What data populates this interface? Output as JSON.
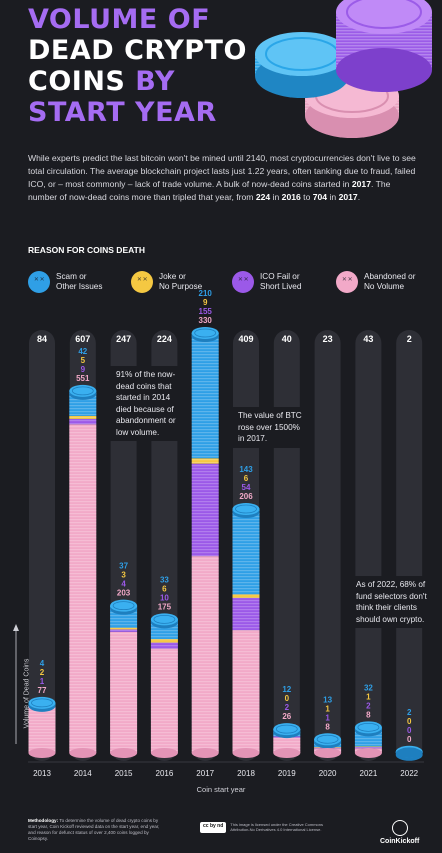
{
  "title": {
    "l1": "VOLUME OF",
    "l2": "DEAD CRYPTO",
    "l3a": "COINS",
    "l3b": " BY",
    "l4": "START YEAR"
  },
  "intro": {
    "p1": "While experts predict the last bitcoin won't be mined until 2140, most cryptocurrencies don't live to see total circulation. The average blockchain project lasts just 1.22 years, often tanking due to fraud, failed ICO, or – most commonly – lack of trade volume. A bulk of now-dead coins started in ",
    "b1": "2017",
    "p2": ". The number of now-dead coins more than tripled that year, from ",
    "b2": "224",
    "p3": " in ",
    "b3": "2016",
    "p4": " to ",
    "b4": "704",
    "p5": " in ",
    "b5": "2017",
    "p6": "."
  },
  "legend": {
    "heading": "REASON FOR COINS DEATH",
    "items": [
      {
        "label": "Scam or\nOther Issues",
        "color": "#2f9fe6"
      },
      {
        "label": "Joke or\nNo Purpose",
        "color": "#f5c842"
      },
      {
        "label": "ICO Fail or\nShort Lived",
        "color": "#9b59e8"
      },
      {
        "label": "Abandoned or\nNo Volume",
        "color": "#f2a9c8"
      }
    ]
  },
  "notes": {
    "n2014": "91% of the now-dead coins that started in 2014 died because of abandonment or low volume.",
    "n2017": "The value of BTC rose over 1500% in 2017.",
    "n2022": "As of 2022, 68% of fund selectors don't think their clients should own crypto."
  },
  "chart_data": {
    "type": "bar",
    "stacked": true,
    "categories": [
      "2013",
      "2014",
      "2015",
      "2016",
      "2017",
      "2018",
      "2019",
      "2020",
      "2021",
      "2022"
    ],
    "totals": [
      84,
      607,
      247,
      224,
      704,
      409,
      40,
      23,
      43,
      2
    ],
    "series": [
      {
        "name": "Scam or Other Issues",
        "color": "#2f9fe6",
        "values": [
          4,
          42,
          37,
          33,
          210,
          143,
          12,
          13,
          32,
          2
        ]
      },
      {
        "name": "Joke or No Purpose",
        "color": "#f5c842",
        "values": [
          2,
          5,
          3,
          6,
          9,
          6,
          0,
          1,
          1,
          0
        ]
      },
      {
        "name": "ICO Fail or Short Lived",
        "color": "#9b59e8",
        "values": [
          1,
          9,
          4,
          10,
          155,
          54,
          2,
          1,
          2,
          0
        ]
      },
      {
        "name": "Abandoned or No Volume",
        "color": "#f2a9c8",
        "values": [
          77,
          551,
          203,
          175,
          330,
          206,
          26,
          8,
          8,
          0
        ]
      }
    ],
    "xlabel": "Coin start year",
    "ylabel": "Volume of Dead Coins",
    "ylim": [
      0,
      704
    ]
  },
  "footer": {
    "methodology_label": "Methodology:",
    "methodology": " To determine the volume of dead crypto coins by start year, Coin Kickoff reviewed data on the start year, end year, and reason for defunct status of over 2,400 coins logged by Coinopsy.",
    "license_badge": "cc by nd",
    "license": "This image is licensed under the Creative Commons Attribution-No Derivatives 4.0 International License.",
    "brand": "CoinKickoff"
  }
}
